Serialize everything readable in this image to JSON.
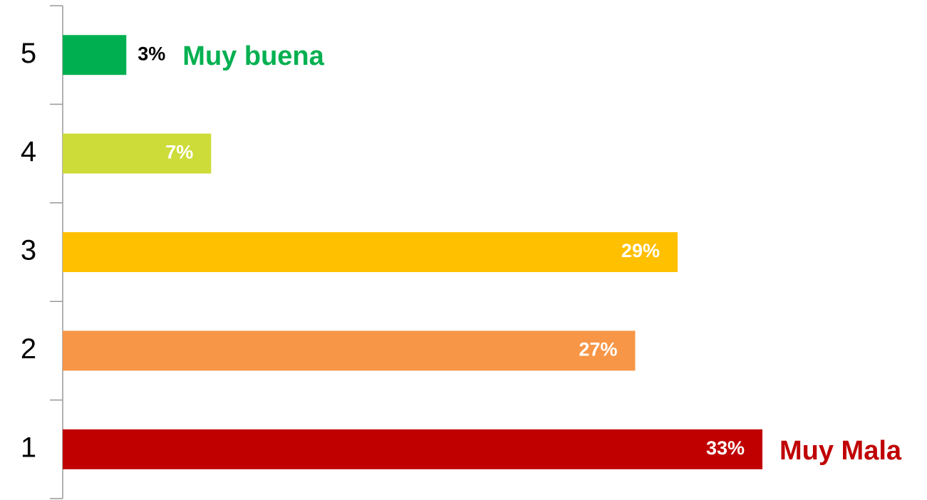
{
  "chart_data": {
    "type": "barh",
    "categories": [
      "5",
      "4",
      "3",
      "2",
      "1"
    ],
    "values": [
      3,
      7,
      29,
      27,
      33
    ],
    "value_labels": [
      "3%",
      "7%",
      "29%",
      "27%",
      "33%"
    ],
    "colors": [
      "#00b050",
      "#cddc39",
      "#ffc000",
      "#f79646",
      "#c00000"
    ],
    "annotations": [
      {
        "text": "Muy buena",
        "category": "5",
        "color": "#00b050"
      },
      {
        "text": "Muy Mala",
        "category": "1",
        "color": "#c00000"
      }
    ]
  }
}
